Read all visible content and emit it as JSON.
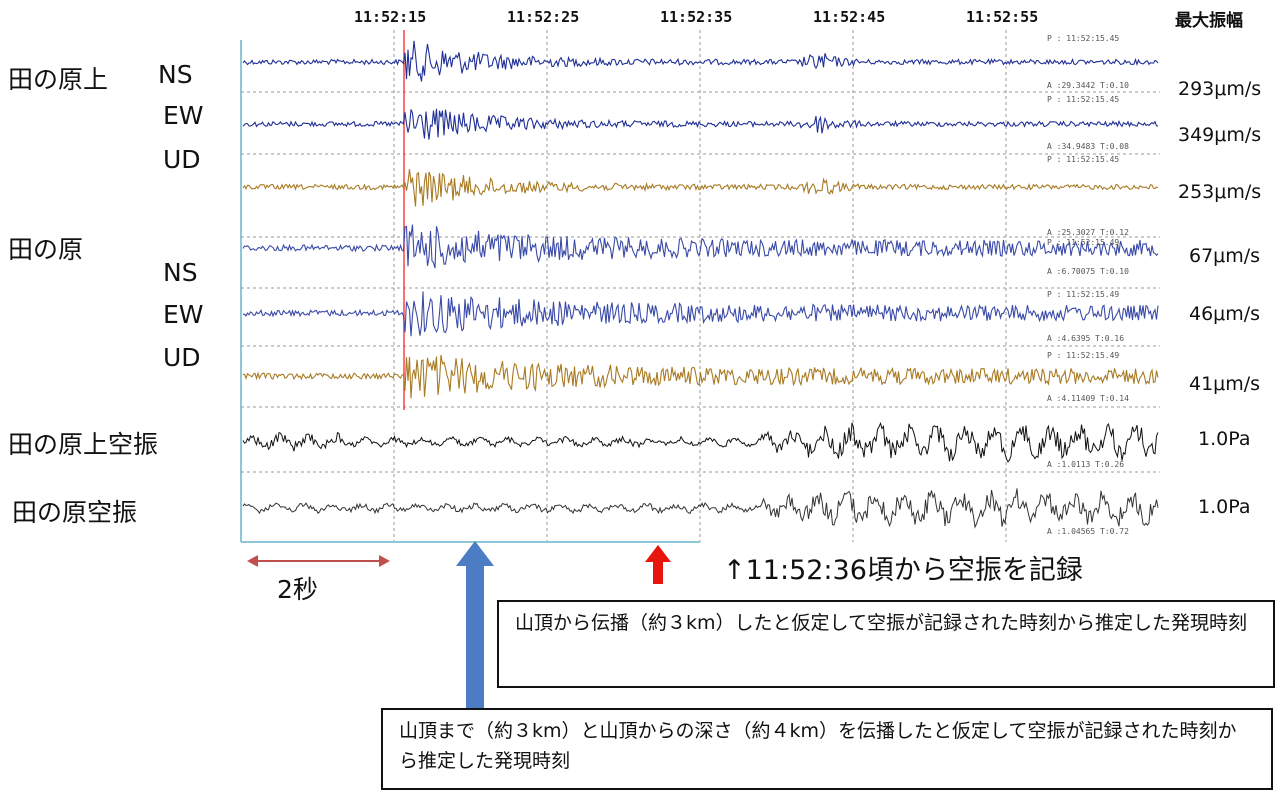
{
  "header": {
    "times": [
      "11:52:15",
      "11:52:25",
      "11:52:35",
      "11:52:45",
      "11:52:55"
    ],
    "max_amp_label": "最大振幅"
  },
  "labels": {
    "station1": "田の原上",
    "station2": "田の原",
    "ns": "NS",
    "ew": "EW",
    "ud": "UD",
    "air1": "田の原上空振",
    "air2": "田の原空振"
  },
  "chart_data": {
    "type": "line",
    "title": "",
    "x_ticks": [
      "11:52:15",
      "11:52:25",
      "11:52:35",
      "11:52:45",
      "11:52:55"
    ],
    "series": [
      {
        "station": "田の原上",
        "component": "NS",
        "max_amplitude": "293μm/s",
        "p_time": "P : 11:52:15.45",
        "ann": "A :29.3442 T:0.10",
        "color": "#1f2f96"
      },
      {
        "station": "田の原上",
        "component": "EW",
        "max_amplitude": "349μm/s",
        "p_time": "P : 11:52:15.45",
        "ann": "A :34.9483 T:0.08",
        "color": "#1f2f96"
      },
      {
        "station": "田の原上",
        "component": "UD",
        "max_amplitude": "253μm/s",
        "p_time": "P : 11:52:15.45",
        "ann": "A :25.3027 T:0.12",
        "color": "#a87a22"
      },
      {
        "station": "田の原",
        "component": "NS",
        "max_amplitude": "67μm/s",
        "p_time": "P : 11:52:15.49",
        "ann": "A :6.70075 T:0.10",
        "color": "#3a4aa8"
      },
      {
        "station": "田の原",
        "component": "EW",
        "max_amplitude": "46μm/s",
        "p_time": "P : 11:52:15.49",
        "ann": "A :4.6395 T:0.16",
        "color": "#3a4aa8"
      },
      {
        "station": "田の原",
        "component": "UD",
        "max_amplitude": "41μm/s",
        "p_time": "P : 11:52:15.49",
        "ann": "A :4.11409 T:0.14",
        "color": "#a87a22"
      },
      {
        "station": "田の原上空振",
        "max_amplitude": "1.0Pa",
        "ann": "A :1.0113 T:0.26",
        "color": "#111111"
      },
      {
        "station": "田の原空振",
        "max_amplitude": "1.0Pa",
        "ann": "A :1.04565 T:0.72",
        "color": "#333333"
      }
    ]
  },
  "annotations": {
    "two_sec": "2秒",
    "air_record": "↑11:52:36頃から空振を記録",
    "box1": "山頂から伝播（約３km）したと仮定して空振が記録された時刻から推定した発現時刻",
    "box2": "山頂まで（約３km）と山頂からの深さ（約４km）を伝播したと仮定して空振が記録された時刻から推定した発現時刻"
  },
  "colors": {
    "red_arrow": "#e8140e",
    "blue_arrow": "#4c7cc4",
    "span_arrow": "#c0504d",
    "p_line": "#ff4040"
  }
}
